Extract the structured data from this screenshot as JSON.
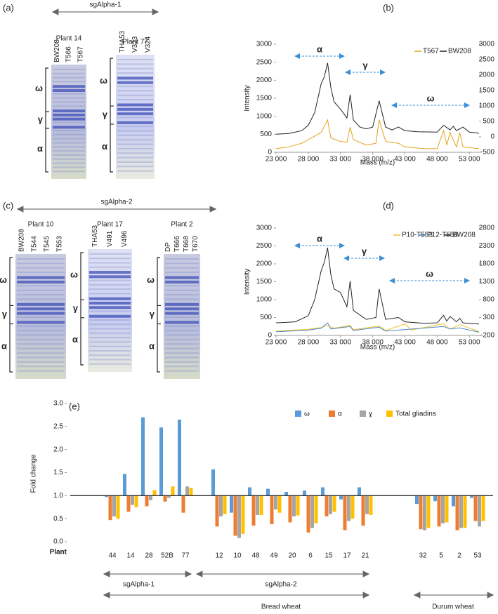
{
  "gels": {
    "a": {
      "panel": "(a)",
      "construct": "sgAlpha-1",
      "bands": [
        "ω",
        "γ",
        "α"
      ],
      "plants": [
        {
          "name": "Plant 14",
          "lanes": [
            "BW208",
            "T566",
            "T567"
          ]
        },
        {
          "name": "Plant 77",
          "lanes": [
            "THA53",
            "V323",
            "V324"
          ]
        }
      ]
    },
    "c": {
      "panel": "(c)",
      "construct": "sgAlpha-2",
      "bands": [
        "ω",
        "γ",
        "α"
      ],
      "plants": [
        {
          "name": "Plant 10",
          "lanes": [
            "BW208",
            "T544",
            "T545",
            "T553"
          ]
        },
        {
          "name": "Plant 17",
          "lanes": [
            "THA53",
            "V491",
            "V496"
          ]
        },
        {
          "name": "Plant 2",
          "lanes": [
            "DP",
            "T666",
            "T668",
            "T670"
          ]
        }
      ]
    }
  },
  "chart_data": [
    {
      "type": "line",
      "panel": "(b)",
      "x_label": "Mass (m/z)",
      "y_label": "Intensity",
      "annotations": [
        "α",
        "γ",
        "ω"
      ],
      "xlim": [
        23000,
        54500
      ],
      "xticks": [
        {
          "value": 23000,
          "label": "23 000"
        },
        {
          "value": 28000,
          "label": "28 000"
        },
        {
          "value": 33000,
          "label": "33 000"
        },
        {
          "value": 38000,
          "label": "38 000"
        },
        {
          "value": 43000,
          "label": "43 000"
        },
        {
          "value": 48000,
          "label": "48 000"
        },
        {
          "value": 53000,
          "label": "53 000"
        }
      ],
      "ylim": [
        0,
        3000
      ],
      "yticks": [
        0,
        500,
        1000,
        1500,
        2000,
        2500,
        3000
      ],
      "y2lim": [
        -500,
        3000
      ],
      "y2ticks": [
        -500,
        0,
        500,
        1000,
        1500,
        2000,
        2500,
        3000
      ],
      "series": [
        {
          "name": "T567",
          "color": "#e3a21a",
          "axis": "y2",
          "x": [
            23000,
            25000,
            27000,
            28000,
            29000,
            30000,
            31000,
            31500,
            33000,
            34000,
            34500,
            35000,
            37000,
            38500,
            39000,
            40000,
            42000,
            43000,
            46000,
            48000,
            49000,
            49500,
            50000,
            51000,
            51500,
            52000,
            54500
          ],
          "values": [
            -383,
            -325,
            -208,
            -92,
            25,
            142,
            550,
            -33,
            -150,
            -173,
            317,
            -92,
            -267,
            -208,
            550,
            -150,
            -208,
            -325,
            -383,
            -383,
            200,
            -267,
            142,
            -325,
            142,
            -325,
            -383
          ]
        },
        {
          "name": "BW208",
          "color": "#222222",
          "x": [
            23000,
            25000,
            27000,
            28000,
            29000,
            30000,
            30500,
            31000,
            31500,
            32000,
            33000,
            34000,
            34500,
            35000,
            36000,
            37000,
            38000,
            39000,
            40000,
            41000,
            42000,
            43000,
            45000,
            48000,
            49000,
            50000,
            50500,
            51000,
            52000,
            53000,
            54500
          ],
          "values": [
            500,
            520,
            600,
            750,
            1100,
            1900,
            2100,
            2480,
            1800,
            1400,
            1200,
            950,
            1600,
            900,
            700,
            650,
            700,
            1430,
            700,
            620,
            700,
            600,
            570,
            560,
            750,
            620,
            720,
            600,
            700,
            560,
            530
          ]
        }
      ]
    },
    {
      "type": "line",
      "panel": "(d)",
      "x_label": "Mass (m/z)",
      "y_label": "Intensity",
      "annotations": [
        "α",
        "γ",
        "ω"
      ],
      "xlim": [
        23000,
        54500
      ],
      "xticks": [
        {
          "value": 23000,
          "label": "23 000"
        },
        {
          "value": 28000,
          "label": "28 000"
        },
        {
          "value": 33000,
          "label": "33 000"
        },
        {
          "value": 38000,
          "label": "38 000"
        },
        {
          "value": 43000,
          "label": "43 000"
        },
        {
          "value": 48000,
          "label": "48 000"
        },
        {
          "value": 53000,
          "label": "53 000"
        }
      ],
      "ylim": [
        0,
        3000
      ],
      "yticks": [
        0,
        500,
        1000,
        1500,
        2000,
        2500,
        3000
      ],
      "y2lim": [
        -200,
        2800
      ],
      "y2ticks": [
        -200,
        300,
        800,
        1300,
        1800,
        2300,
        2800
      ],
      "series": [
        {
          "name": "P10-T553",
          "color": "#f2c12e",
          "axis": "y2",
          "x": [
            23000,
            28000,
            30000,
            31000,
            32000,
            34500,
            35000,
            39000,
            40000,
            43000,
            44000,
            49000,
            50000,
            51500,
            54500
          ],
          "values": [
            -80,
            -30,
            20,
            80,
            0,
            80,
            -40,
            60,
            -60,
            120,
            -50,
            130,
            -30,
            100,
            -90
          ]
        },
        {
          "name": "P12-T558",
          "color": "#4a86c5",
          "axis": "y2",
          "x": [
            23000,
            28000,
            30000,
            31000,
            31500,
            34500,
            35000,
            39000,
            40000,
            49000,
            50000,
            51500,
            54500
          ],
          "values": [
            -100,
            -50,
            0,
            150,
            -20,
            50,
            -60,
            30,
            -80,
            50,
            -20,
            10,
            -110
          ]
        },
        {
          "name": "BW208",
          "color": "#222222",
          "x": [
            23000,
            26000,
            28000,
            29000,
            30000,
            30500,
            31000,
            31500,
            32000,
            33000,
            34000,
            34500,
            35000,
            37000,
            38500,
            39000,
            40000,
            42000,
            43000,
            46000,
            48000,
            49000,
            49500,
            50000,
            51000,
            51500,
            52000,
            54500
          ],
          "values": [
            350,
            380,
            550,
            1000,
            1800,
            2050,
            2450,
            1700,
            1300,
            1200,
            800,
            1520,
            700,
            450,
            500,
            1300,
            450,
            500,
            380,
            340,
            350,
            560,
            400,
            530,
            380,
            480,
            350,
            320
          ]
        }
      ]
    },
    {
      "type": "bar",
      "panel": "(e)",
      "y_label": "Fold change",
      "x_label": "Plant",
      "categories": [
        "44",
        "14",
        "28",
        "52B",
        "77",
        "12",
        "10",
        "48",
        "49",
        "20",
        "6",
        "15",
        "17",
        "21",
        "32",
        "5",
        "2",
        "53"
      ],
      "ylim": [
        0,
        3
      ],
      "baseline": 1,
      "yticks": [
        {
          "value": 0,
          "label": "0.0"
        },
        0.5,
        {
          "value": 1,
          "label": "1.0"
        },
        1.5,
        {
          "value": 2,
          "label": "2.0"
        },
        2.5,
        {
          "value": 3,
          "label": "3.0"
        }
      ],
      "groups": [
        "sgAlpha-1",
        "sgAlpha-2",
        "Bread wheat",
        "Durum wheat"
      ],
      "series": [
        {
          "name": "ω",
          "color": "#5b9bd5",
          "values": [
            0.97,
            1.47,
            2.7,
            2.48,
            2.65,
            1.57,
            0.63,
            1.18,
            1.15,
            1.08,
            1.11,
            1.18,
            0.92,
            1.18,
            0.82,
            0.88,
            0.77,
            0.95
          ]
        },
        {
          "name": "α",
          "color": "#ed7d31",
          "values": [
            0.47,
            0.65,
            0.77,
            0.87,
            0.63,
            0.33,
            0.13,
            0.35,
            0.38,
            0.42,
            0.2,
            0.55,
            0.25,
            0.35,
            0.27,
            0.33,
            0.25,
            0.45
          ]
        },
        {
          "name": "ɣ",
          "color": "#a5a5a5",
          "values": [
            0.55,
            0.8,
            0.9,
            0.95,
            1.2,
            0.55,
            0.08,
            0.58,
            0.7,
            0.55,
            0.3,
            0.6,
            0.45,
            0.6,
            0.25,
            0.4,
            0.3,
            0.33
          ]
        },
        {
          "name": "Total gliadins",
          "color": "#ffc000",
          "values": [
            0.5,
            0.75,
            1.12,
            1.2,
            1.17,
            0.6,
            0.17,
            0.58,
            0.63,
            0.57,
            0.4,
            0.65,
            0.5,
            0.58,
            0.3,
            0.42,
            0.3,
            0.45
          ]
        }
      ]
    }
  ]
}
